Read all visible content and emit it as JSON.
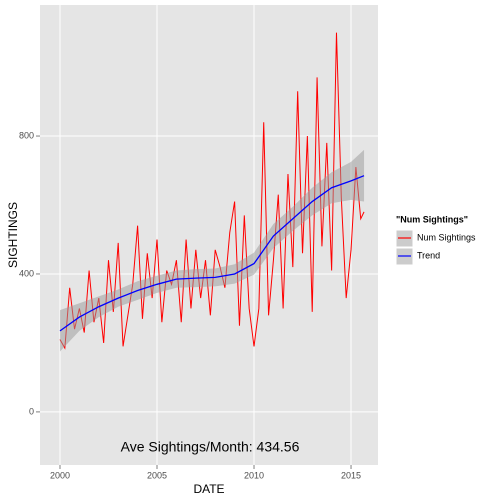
{
  "chart_data": {
    "type": "line",
    "xlabel": "DATE",
    "ylabel": "SIGHTINGS",
    "annotation": "Ave Sightings/Month: 434.56",
    "legend_title": "\"Num Sightings\"",
    "legend": "right",
    "grid": true,
    "xlim": [
      1998.97,
      2016.39
    ],
    "xticks": [
      2000,
      2005,
      2010,
      2015
    ],
    "ylim": [
      -154,
      1180
    ],
    "yticks": [
      0,
      400,
      800
    ],
    "series": [
      {
        "name": "Num Sightings",
        "color": "#ff0000",
        "x": [
          2000,
          2000.25,
          2000.5,
          2000.75,
          2001,
          2001.25,
          2001.5,
          2001.75,
          2002,
          2002.25,
          2002.5,
          2002.75,
          2003,
          2003.25,
          2003.5,
          2003.75,
          2004,
          2004.25,
          2004.5,
          2004.75,
          2005,
          2005.25,
          2005.5,
          2005.75,
          2006,
          2006.25,
          2006.5,
          2006.75,
          2007,
          2007.25,
          2007.5,
          2007.75,
          2008,
          2008.25,
          2008.5,
          2008.75,
          2009,
          2009.25,
          2009.5,
          2009.75,
          2010,
          2010.25,
          2010.5,
          2010.75,
          2011,
          2011.25,
          2011.5,
          2011.75,
          2012,
          2012.25,
          2012.5,
          2012.75,
          2013,
          2013.25,
          2013.5,
          2013.75,
          2014,
          2014.25,
          2014.5,
          2014.75,
          2015,
          2015.25,
          2015.5,
          2015.67
        ],
        "values": [
          210,
          185,
          360,
          240,
          300,
          230,
          410,
          260,
          330,
          200,
          440,
          290,
          490,
          190,
          280,
          370,
          540,
          270,
          460,
          330,
          500,
          260,
          410,
          370,
          440,
          260,
          500,
          300,
          470,
          330,
          440,
          280,
          470,
          420,
          360,
          520,
          610,
          250,
          570,
          300,
          190,
          300,
          840,
          280,
          440,
          630,
          300,
          690,
          420,
          930,
          460,
          800,
          290,
          970,
          480,
          780,
          410,
          1100,
          620,
          330,
          470,
          710,
          560,
          580
        ]
      },
      {
        "name": "Trend",
        "color": "#0000ff",
        "x": [
          2000,
          2001,
          2002,
          2003,
          2004,
          2005,
          2006,
          2007,
          2008,
          2009,
          2010,
          2011,
          2012,
          2013,
          2014,
          2015,
          2015.67
        ],
        "values": [
          235,
          275,
          305,
          330,
          352,
          370,
          385,
          388,
          390,
          400,
          430,
          510,
          560,
          610,
          650,
          670,
          685
        ],
        "lower": [
          175,
          235,
          275,
          305,
          325,
          345,
          360,
          362,
          364,
          372,
          398,
          475,
          525,
          570,
          605,
          615,
          610
        ],
        "upper": [
          295,
          315,
          335,
          355,
          379,
          395,
          410,
          414,
          416,
          428,
          462,
          545,
          595,
          650,
          695,
          725,
          760
        ]
      }
    ]
  }
}
